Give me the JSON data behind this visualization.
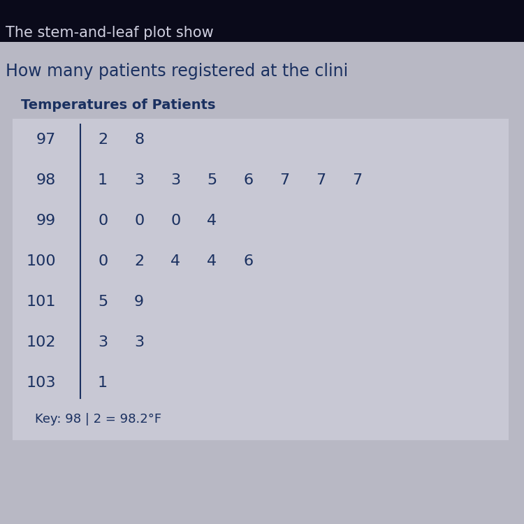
{
  "title_line1": "The stem-and-leaf plot show",
  "title_line2": "How many patients registered at the clini",
  "table_title": "Temperatures of Patients",
  "stems": [
    "97",
    "98",
    "99",
    "100",
    "101",
    "102",
    "103"
  ],
  "leaves": [
    [
      "2",
      "8"
    ],
    [
      "1",
      "3",
      "3",
      "5",
      "6",
      "7",
      "7",
      "7"
    ],
    [
      "0",
      "0",
      "0",
      "4"
    ],
    [
      "0",
      "2",
      "4",
      "4",
      "6"
    ],
    [
      "5",
      "9"
    ],
    [
      "3",
      "3"
    ],
    [
      "1"
    ]
  ],
  "key_text": "Key: 98 | 2 = 98.2°F",
  "bg_color": "#b8b8c4",
  "text_color": "#1a3060",
  "table_bg": "#c8c8d4",
  "top_bar_color": "#0a0a1a",
  "top_text_color": "#d0d0e0"
}
